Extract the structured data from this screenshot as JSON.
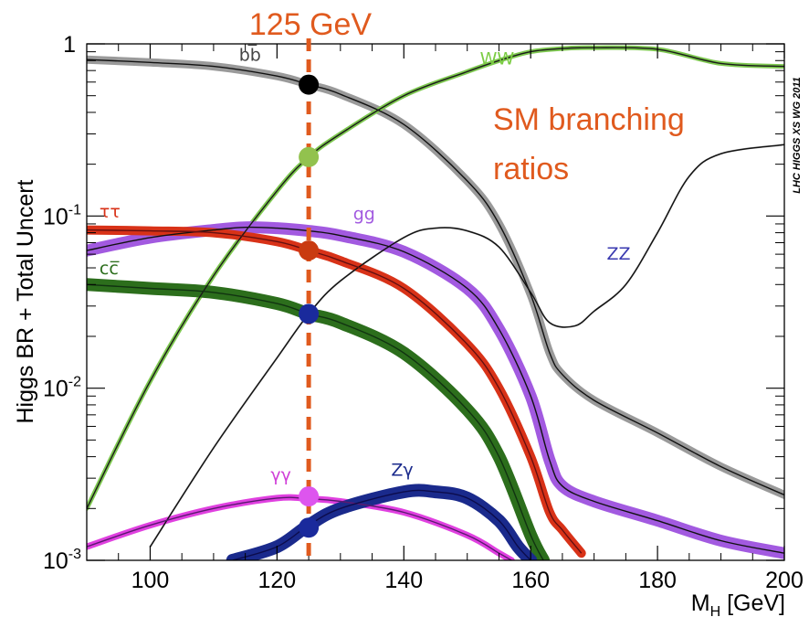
{
  "chart_data": {
    "type": "line",
    "title": "125 GeV",
    "ylabel": "Higgs BR + Total Uncert",
    "xlabel_main": "M",
    "xlabel_sub": "H",
    "xlabel_unit": " [GeV]",
    "credit": "LHC HIGGS XS WG 2011",
    "annotation_line1": "SM branching",
    "annotation_line2": "ratios",
    "xlim": [
      90,
      200
    ],
    "ylim": [
      0.001,
      1
    ],
    "yscale": "log",
    "x_ticks": [
      100,
      120,
      140,
      160,
      180,
      200
    ],
    "y_ticks": [
      {
        "value": 1,
        "base": "1",
        "exp": ""
      },
      {
        "value": 0.1,
        "base": "10",
        "exp": "-1"
      },
      {
        "value": 0.01,
        "base": "10",
        "exp": "-2"
      },
      {
        "value": 0.001,
        "base": "10",
        "exp": "-3"
      }
    ],
    "marker_x": 125,
    "series": [
      {
        "name": "bb̅",
        "color": "#111111",
        "band": "#9a9a9a",
        "bandwidth": 9,
        "label_pos": [
          114,
          0.8
        ],
        "points": [
          [
            90,
            0.81
          ],
          [
            100,
            0.78
          ],
          [
            110,
            0.74
          ],
          [
            120,
            0.65
          ],
          [
            125,
            0.58
          ],
          [
            130,
            0.51
          ],
          [
            140,
            0.34
          ],
          [
            150,
            0.16
          ],
          [
            155,
            0.09
          ],
          [
            160,
            0.035
          ],
          [
            163,
            0.016
          ],
          [
            165,
            0.012
          ],
          [
            170,
            0.0085
          ],
          [
            180,
            0.0055
          ],
          [
            190,
            0.0035
          ],
          [
            200,
            0.0024
          ]
        ]
      },
      {
        "name": "WW",
        "color": "#1a1a1a",
        "band": "#7ec850",
        "bandwidth": 5,
        "label_pos": [
          152,
          0.76
        ],
        "points": [
          [
            90,
            0.002
          ],
          [
            100,
            0.011
          ],
          [
            110,
            0.045
          ],
          [
            120,
            0.14
          ],
          [
            125,
            0.22
          ],
          [
            130,
            0.3
          ],
          [
            140,
            0.5
          ],
          [
            150,
            0.69
          ],
          [
            155,
            0.8
          ],
          [
            160,
            0.9
          ],
          [
            165,
            0.94
          ],
          [
            170,
            0.95
          ],
          [
            180,
            0.93
          ],
          [
            190,
            0.77
          ],
          [
            200,
            0.74
          ]
        ]
      },
      {
        "name": "ZZ",
        "color": "#111111",
        "band": "#aaaaaa",
        "bandwidth": 2,
        "label_pos": [
          172,
          0.056
        ],
        "points": [
          [
            100,
            0.0012
          ],
          [
            110,
            0.0045
          ],
          [
            120,
            0.015
          ],
          [
            125,
            0.027
          ],
          [
            130,
            0.042
          ],
          [
            140,
            0.075
          ],
          [
            145,
            0.085
          ],
          [
            150,
            0.082
          ],
          [
            155,
            0.066
          ],
          [
            160,
            0.036
          ],
          [
            163,
            0.024
          ],
          [
            167,
            0.023
          ],
          [
            170,
            0.028
          ],
          [
            175,
            0.04
          ],
          [
            180,
            0.08
          ],
          [
            185,
            0.17
          ],
          [
            190,
            0.23
          ],
          [
            200,
            0.26
          ]
        ]
      },
      {
        "name": "gg",
        "color": "#111111",
        "band": "#a25ae0",
        "bandwidth": 13,
        "label_pos": [
          132,
          0.095
        ],
        "points": [
          [
            90,
            0.063
          ],
          [
            100,
            0.075
          ],
          [
            110,
            0.083
          ],
          [
            115,
            0.086
          ],
          [
            120,
            0.085
          ],
          [
            125,
            0.082
          ],
          [
            130,
            0.077
          ],
          [
            140,
            0.062
          ],
          [
            150,
            0.038
          ],
          [
            155,
            0.022
          ],
          [
            160,
            0.009
          ],
          [
            163,
            0.0038
          ],
          [
            165,
            0.0027
          ],
          [
            170,
            0.0022
          ],
          [
            180,
            0.0017
          ],
          [
            190,
            0.0013
          ],
          [
            200,
            0.0011
          ]
        ]
      },
      {
        "name": "ττ",
        "color": "#661010",
        "band": "#d83218",
        "bandwidth": 10,
        "label_pos": [
          92,
          0.098
        ],
        "points": [
          [
            90,
            0.083
          ],
          [
            100,
            0.082
          ],
          [
            110,
            0.08
          ],
          [
            120,
            0.071
          ],
          [
            125,
            0.063
          ],
          [
            130,
            0.055
          ],
          [
            140,
            0.038
          ],
          [
            150,
            0.018
          ],
          [
            155,
            0.01
          ],
          [
            160,
            0.004
          ],
          [
            163,
            0.0019
          ],
          [
            165,
            0.0015
          ],
          [
            168,
            0.0011
          ]
        ]
      },
      {
        "name": "cc̅",
        "color": "#113311",
        "band": "#2c6e1c",
        "bandwidth": 14,
        "label_pos": [
          92,
          0.046
        ],
        "points": [
          [
            90,
            0.04
          ],
          [
            100,
            0.038
          ],
          [
            110,
            0.036
          ],
          [
            120,
            0.031
          ],
          [
            125,
            0.027
          ],
          [
            130,
            0.024
          ],
          [
            140,
            0.016
          ],
          [
            150,
            0.0075
          ],
          [
            155,
            0.004
          ],
          [
            160,
            0.0014
          ],
          [
            162,
            0.001
          ]
        ]
      },
      {
        "name": "γγ",
        "color": "#5a1a70",
        "band": "#e040e0",
        "bandwidth": 7,
        "label_pos": [
          119,
          0.0029
        ],
        "points": [
          [
            90,
            0.0012
          ],
          [
            100,
            0.0016
          ],
          [
            110,
            0.002
          ],
          [
            120,
            0.0023
          ],
          [
            125,
            0.00228
          ],
          [
            130,
            0.0022
          ],
          [
            140,
            0.0019
          ],
          [
            150,
            0.0014
          ],
          [
            155,
            0.0011
          ],
          [
            157,
            0.001
          ]
        ]
      },
      {
        "name": "Zγ",
        "color": "#0c0c4c",
        "band": "#1a2a8c",
        "bandwidth": 14,
        "label_pos": [
          138,
          0.0031
        ],
        "points": [
          [
            113,
            0.001
          ],
          [
            120,
            0.0012
          ],
          [
            125,
            0.0016
          ],
          [
            130,
            0.002
          ],
          [
            140,
            0.0025
          ],
          [
            145,
            0.0025
          ],
          [
            150,
            0.0023
          ],
          [
            155,
            0.0017
          ],
          [
            158,
            0.0012
          ],
          [
            160,
            0.001
          ]
        ]
      }
    ],
    "markers": [
      {
        "series": "bb̅",
        "x": 125,
        "y": 0.58,
        "color": "#000000"
      },
      {
        "series": "WW",
        "x": 125,
        "y": 0.22,
        "color": "#92c24e"
      },
      {
        "series": "ττ",
        "x": 125,
        "y": 0.063,
        "color": "#c93a10"
      },
      {
        "series": "ZZ",
        "x": 125,
        "y": 0.027,
        "color": "#1a2a9c"
      },
      {
        "series": "γγ",
        "x": 125,
        "y": 0.00235,
        "color": "#dd55ee"
      },
      {
        "series": "Zγ",
        "x": 125,
        "y": 0.00155,
        "color": "#1a2a9c"
      }
    ],
    "label_colors": {
      "bb̅": "#444444",
      "WW": "#7bcc43",
      "ZZ": "#3a3ab0",
      "gg": "#a25ae0",
      "ττ": "#d83218",
      "cc̅": "#2c6e1c",
      "γγ": "#d040d8",
      "Zγ": "#1a2a8c"
    },
    "vline_color": "#e05a1e",
    "grid": false
  }
}
